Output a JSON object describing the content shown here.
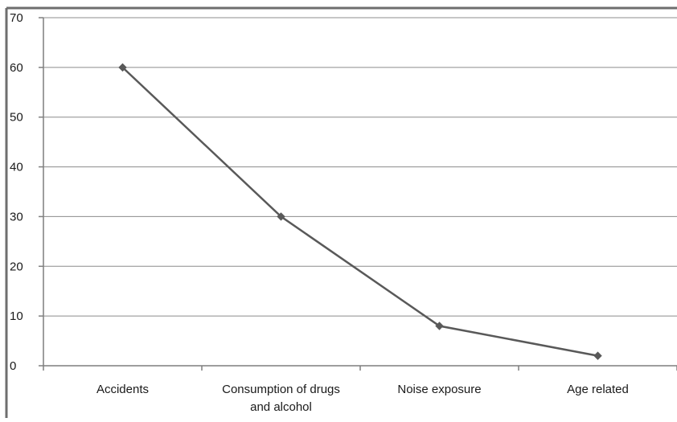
{
  "chart_data": {
    "type": "line",
    "categories": [
      [
        "Accidents"
      ],
      [
        "Consumption of drugs",
        "and alcohol"
      ],
      [
        "Noise exposure"
      ],
      [
        "Age related"
      ]
    ],
    "series": [
      {
        "values": [
          60,
          30,
          8,
          2
        ]
      }
    ],
    "ylim": [
      0,
      70
    ],
    "yticks": [
      0,
      10,
      20,
      30,
      40,
      50,
      60,
      70
    ],
    "grid": true,
    "legend": "none",
    "colors": {
      "line": "#595959",
      "marker": "#595959",
      "grid": "#8c8c8c",
      "axis": "#7f7f7f",
      "frame": "#6e6e6e"
    }
  }
}
